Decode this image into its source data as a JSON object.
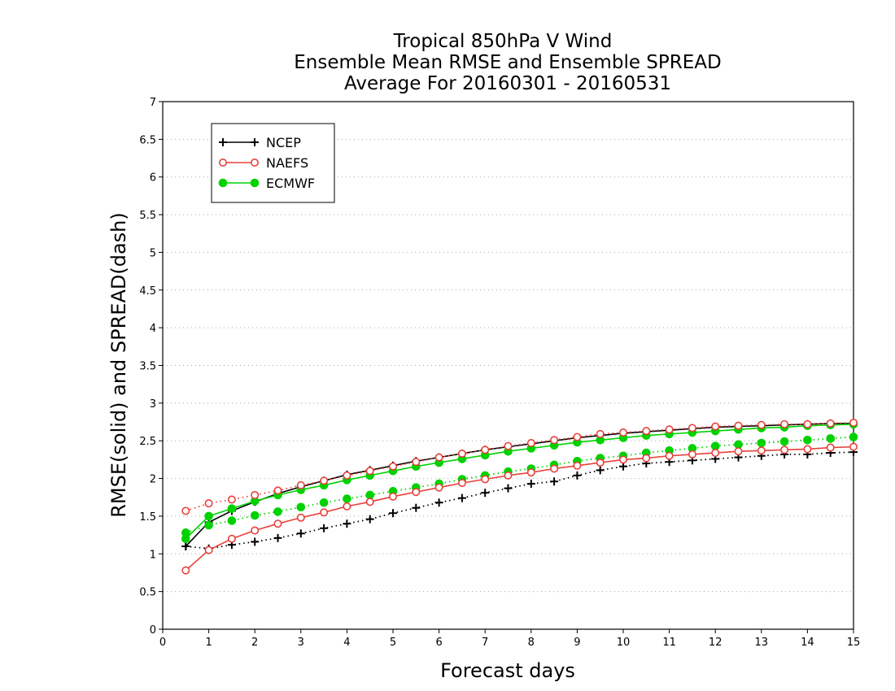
{
  "chart_data": {
    "type": "line",
    "title_lines": [
      "Tropical 850hPa V Wind",
      "Ensemble Mean RMSE and Ensemble SPREAD",
      "Average For 20160301 - 20160531"
    ],
    "xlabel": "Forecast days",
    "ylabel": "RMSE(solid) and SPREAD(dash)",
    "xlim": [
      0,
      15
    ],
    "ylim": [
      0,
      7
    ],
    "xticks": [
      "0",
      "1",
      "2",
      "3",
      "4",
      "5",
      "6",
      "7",
      "8",
      "9",
      "10",
      "11",
      "12",
      "13",
      "14",
      "15"
    ],
    "yticks": [
      "0",
      "0.5",
      "1",
      "1.5",
      "2",
      "2.5",
      "3",
      "3.5",
      "4",
      "4.5",
      "5",
      "5.5",
      "6",
      "6.5",
      "7"
    ],
    "grid": "horizontal dotted",
    "legend_position": "top-left",
    "x": [
      0.5,
      1,
      1.5,
      2,
      2.5,
      3,
      3.5,
      4,
      4.5,
      5,
      5.5,
      6,
      6.5,
      7,
      7.5,
      8,
      8.5,
      9,
      9.5,
      10,
      10.5,
      11,
      11.5,
      12,
      12.5,
      13,
      13.5,
      14,
      14.5,
      15
    ],
    "series": [
      {
        "name": "NCEP",
        "color": "#000000",
        "marker": "plus",
        "rmse": [
          1.1,
          1.42,
          1.57,
          1.69,
          1.8,
          1.89,
          1.97,
          2.05,
          2.11,
          2.17,
          2.23,
          2.28,
          2.33,
          2.38,
          2.42,
          2.46,
          2.5,
          2.54,
          2.57,
          2.6,
          2.62,
          2.64,
          2.66,
          2.68,
          2.69,
          2.7,
          2.71,
          2.72,
          2.73,
          2.73
        ],
        "spread": [
          1.1,
          1.07,
          1.12,
          1.16,
          1.21,
          1.27,
          1.34,
          1.4,
          1.46,
          1.54,
          1.61,
          1.68,
          1.74,
          1.81,
          1.87,
          1.93,
          1.96,
          2.04,
          2.11,
          2.16,
          2.2,
          2.22,
          2.24,
          2.26,
          2.28,
          2.3,
          2.32,
          2.32,
          2.34,
          2.35
        ]
      },
      {
        "name": "NAEFS",
        "color": "#e8403a",
        "marker": "open-circle",
        "rmse": [
          0.78,
          1.05,
          1.2,
          1.31,
          1.4,
          1.48,
          1.55,
          1.63,
          1.69,
          1.76,
          1.82,
          1.88,
          1.94,
          1.99,
          2.04,
          2.08,
          2.13,
          2.17,
          2.21,
          2.25,
          2.27,
          2.3,
          2.32,
          2.34,
          2.36,
          2.37,
          2.38,
          2.39,
          2.41,
          2.42
        ],
        "spread": [
          1.57,
          1.67,
          1.72,
          1.78,
          1.84,
          1.91,
          1.97,
          2.04,
          2.1,
          2.16,
          2.22,
          2.28,
          2.33,
          2.38,
          2.43,
          2.47,
          2.51,
          2.55,
          2.59,
          2.61,
          2.63,
          2.65,
          2.67,
          2.69,
          2.7,
          2.71,
          2.72,
          2.72,
          2.73,
          2.74
        ]
      },
      {
        "name": "ECMWF",
        "color": "#00d200",
        "marker": "filled-circle",
        "rmse": [
          1.2,
          1.5,
          1.6,
          1.7,
          1.78,
          1.85,
          1.91,
          1.98,
          2.04,
          2.1,
          2.16,
          2.21,
          2.26,
          2.31,
          2.36,
          2.4,
          2.44,
          2.48,
          2.51,
          2.54,
          2.57,
          2.59,
          2.61,
          2.63,
          2.65,
          2.67,
          2.68,
          2.7,
          2.71,
          2.72
        ],
        "spread": [
          1.28,
          1.38,
          1.44,
          1.51,
          1.56,
          1.62,
          1.68,
          1.73,
          1.78,
          1.83,
          1.88,
          1.93,
          1.99,
          2.04,
          2.09,
          2.13,
          2.18,
          2.23,
          2.27,
          2.3,
          2.34,
          2.37,
          2.4,
          2.43,
          2.45,
          2.47,
          2.49,
          2.51,
          2.53,
          2.55
        ]
      }
    ]
  }
}
